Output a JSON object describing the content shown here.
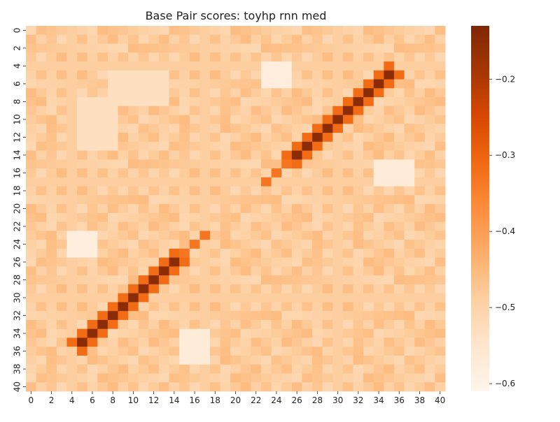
{
  "chart_data": {
    "type": "heatmap",
    "title": "Base Pair scores: toyhp rnn med",
    "n": 41,
    "x_tick_labels": [
      "0",
      "2",
      "4",
      "6",
      "8",
      "10",
      "12",
      "14",
      "16",
      "18",
      "20",
      "22",
      "24",
      "26",
      "28",
      "30",
      "32",
      "34",
      "36",
      "38",
      "40"
    ],
    "y_tick_labels": [
      "0",
      "2",
      "4",
      "6",
      "8",
      "10",
      "12",
      "14",
      "16",
      "18",
      "20",
      "22",
      "24",
      "26",
      "28",
      "30",
      "32",
      "34",
      "36",
      "38",
      "40"
    ],
    "colorbar": {
      "min": -0.61,
      "max": -0.13,
      "ticks": [
        -0.6,
        -0.5,
        -0.4,
        -0.3,
        -0.2
      ],
      "tick_labels": [
        "−0.6",
        "−0.5",
        "−0.4",
        "−0.3",
        "−0.2"
      ],
      "colormap": "Oranges"
    },
    "background_score": -0.48,
    "diagonal_bands": [
      {
        "sum": 40,
        "from": 5,
        "to": 14,
        "peak_score": -0.15
      },
      {
        "sum": 40,
        "from": 26,
        "to": 35,
        "peak_score": -0.15
      },
      {
        "sum": 40,
        "from": 15,
        "to": 17,
        "peak_score": -0.33
      },
      {
        "sum": 40,
        "from": 23,
        "to": 25,
        "peak_score": -0.33
      }
    ],
    "light_regions": [
      {
        "rows": [
          4,
          6
        ],
        "cols": [
          23,
          25
        ],
        "score": -0.58
      },
      {
        "rows": [
          23,
          25
        ],
        "cols": [
          4,
          6
        ],
        "score": -0.58
      },
      {
        "rows": [
          15,
          17
        ],
        "cols": [
          34,
          37
        ],
        "score": -0.57
      },
      {
        "rows": [
          34,
          37
        ],
        "cols": [
          15,
          17
        ],
        "score": -0.57
      },
      {
        "rows": [
          8,
          13
        ],
        "cols": [
          5,
          8
        ],
        "score": -0.53
      },
      {
        "rows": [
          5,
          8
        ],
        "cols": [
          8,
          13
        ],
        "score": -0.53
      }
    ],
    "colors": {
      "ramp": [
        "#fff5eb",
        "#fee6ce",
        "#fdd0a2",
        "#fdae6b",
        "#fd8d3c",
        "#f16913",
        "#d94801",
        "#a63603",
        "#7f2704"
      ]
    }
  }
}
